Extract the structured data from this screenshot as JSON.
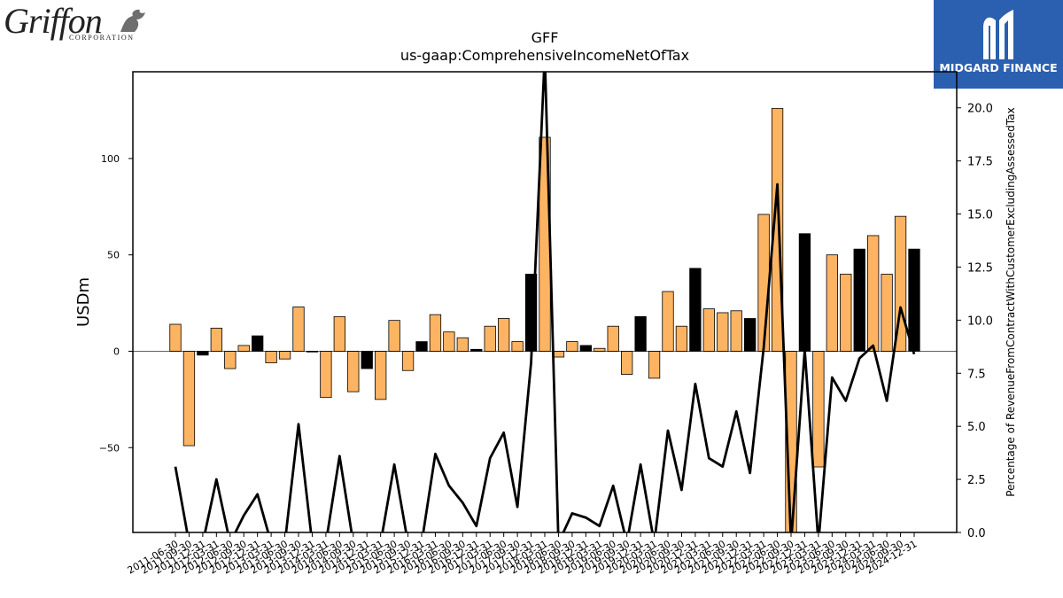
{
  "branding": {
    "left_logo_word": "Griffon",
    "left_logo_sub": "CORPORATION",
    "right_logo_name": "MIDGARD FINANCE",
    "right_logo_bg": "#2b5fb0"
  },
  "chart_data": {
    "type": "bar",
    "title": "GFF",
    "subtitle": "us-gaap:ComprehensiveIncomeNetOfTax",
    "ylabel": "USDm",
    "y2label": "Percentage of RevenueFromContractWithCustomerExcludingAssessedTax",
    "ylim": [
      -94,
      145
    ],
    "y_ticks": [
      -50,
      0,
      50,
      100
    ],
    "y2lim": [
      0,
      21.7
    ],
    "y2_ticks": [
      0.0,
      2.5,
      5.0,
      7.5,
      10.0,
      12.5,
      15.0,
      17.5,
      20.0
    ],
    "y2_tick_labels": [
      "0.0",
      "2.5",
      "5.0",
      "7.5",
      "10.0",
      "12.5",
      "15.0",
      "17.5",
      "20.0"
    ],
    "grid": false,
    "colors": {
      "bar_default": "#fdb462",
      "bar_highlight": "#000000",
      "line": "#000000"
    },
    "categories": [
      "2011-06-30",
      "2011-09-30",
      "2011-12-31",
      "2012-03-31",
      "2012-06-30",
      "2012-09-30",
      "2012-12-31",
      "2013-03-31",
      "2013-06-30",
      "2013-09-30",
      "2013-12-31",
      "2014-03-31",
      "2014-06-30",
      "2014-09-30",
      "2014-12-31",
      "2015-03-31",
      "2015-06-30",
      "2015-09-30",
      "2015-12-31",
      "2016-03-31",
      "2016-06-30",
      "2016-09-30",
      "2016-12-31",
      "2017-03-31",
      "2017-06-30",
      "2017-09-30",
      "2017-12-31",
      "2018-03-31",
      "2018-06-30",
      "2018-09-30",
      "2018-12-31",
      "2019-03-31",
      "2019-06-30",
      "2019-09-30",
      "2019-12-31",
      "2020-03-31",
      "2020-06-30",
      "2020-09-30",
      "2020-12-31",
      "2021-03-31",
      "2021-06-30",
      "2021-09-30",
      "2021-12-31",
      "2022-03-31",
      "2022-06-30",
      "2022-09-30",
      "2022-12-31",
      "2023-03-31",
      "2023-06-30",
      "2023-09-30",
      "2023-12-31",
      "2024-03-31",
      "2024-06-30",
      "2024-09-30",
      "2024-12-31"
    ],
    "series": [
      {
        "kind": "bar",
        "axis": "left",
        "values": [
          14,
          -49,
          -2,
          12,
          -9,
          3,
          8,
          -6,
          -4,
          23,
          0,
          -24,
          18,
          -21,
          -9,
          -25,
          16,
          -10,
          5,
          19,
          10,
          7,
          1,
          13,
          17,
          5,
          40,
          111,
          -3,
          5,
          3,
          1.5,
          13,
          -12,
          18,
          -14,
          31,
          13,
          43,
          22,
          20,
          21,
          17,
          71,
          126,
          -97,
          61,
          -60,
          50,
          40,
          53,
          60,
          40,
          70,
          53
        ],
        "highlighted": [
          false,
          false,
          true,
          false,
          false,
          false,
          true,
          false,
          false,
          false,
          true,
          false,
          false,
          false,
          true,
          false,
          false,
          false,
          true,
          false,
          false,
          false,
          true,
          false,
          false,
          false,
          true,
          false,
          false,
          false,
          true,
          false,
          false,
          false,
          true,
          false,
          false,
          false,
          true,
          false,
          false,
          false,
          true,
          false,
          false,
          false,
          true,
          false,
          false,
          false,
          true,
          false,
          false,
          false,
          true
        ]
      },
      {
        "kind": "line",
        "axis": "right",
        "values": [
          3.1,
          -0.5,
          -0.5,
          2.5,
          -0.5,
          0.8,
          1.8,
          -0.5,
          -0.5,
          5.1,
          -0.5,
          -0.5,
          3.6,
          -0.5,
          -0.5,
          -0.5,
          3.2,
          -0.5,
          -0.5,
          3.7,
          2.2,
          1.4,
          0.3,
          3.5,
          4.7,
          1.2,
          8.0,
          22.5,
          -0.5,
          0.9,
          0.7,
          0.3,
          2.2,
          -0.5,
          3.2,
          -0.5,
          4.8,
          2.0,
          7.0,
          3.5,
          3.1,
          5.7,
          2.8,
          8.7,
          16.4,
          -0.5,
          8.6,
          -0.5,
          7.3,
          6.2,
          8.2,
          8.8,
          6.2,
          10.6,
          8.4
        ]
      }
    ]
  }
}
